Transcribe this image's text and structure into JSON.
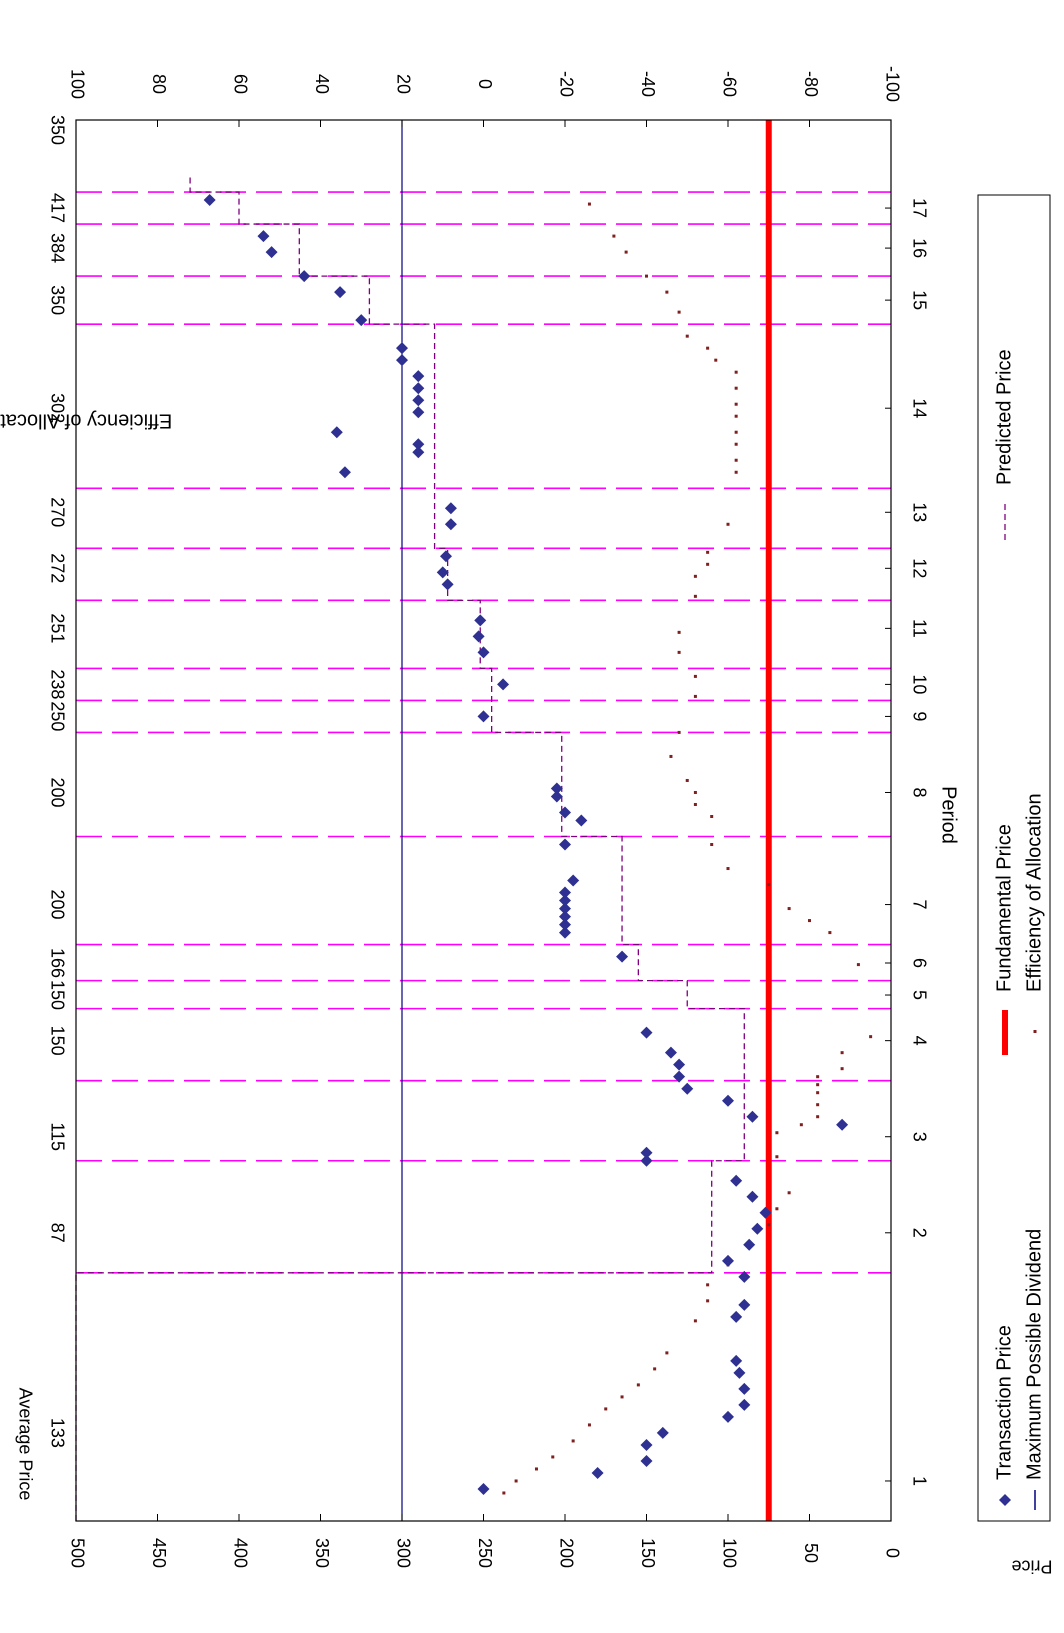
{
  "chart_data": {
    "type": "scatter",
    "title": "",
    "xlabel": "Period",
    "ylabel": "Price",
    "y2label": "Efficiency of Allocations (Percent)",
    "average_price_label": "Average Price",
    "ylim": [
      0,
      500
    ],
    "y2lim": [
      -100,
      100
    ],
    "yticks": [
      "0",
      "50",
      "100",
      "150",
      "200",
      "250",
      "300",
      "350",
      "400",
      "450",
      "500"
    ],
    "y2ticks": [
      "-100",
      "-80",
      "-60",
      "-40",
      "-20",
      "0",
      "20",
      "40",
      "60",
      "80",
      "100"
    ],
    "x_range": [
      0.5,
      18
    ],
    "rotation": "rotated 90 degrees clockwise",
    "legend_position": "bottom",
    "period_labels": [
      {
        "label": "1",
        "x": 1.0
      },
      {
        "label": "2",
        "x": 4.1
      },
      {
        "label": "3",
        "x": 5.3
      },
      {
        "label": "4",
        "x": 6.5
      },
      {
        "label": "5",
        "x": 7.07
      },
      {
        "label": "6",
        "x": 7.47
      },
      {
        "label": "7",
        "x": 8.2
      },
      {
        "label": "8",
        "x": 9.6
      },
      {
        "label": "9",
        "x": 10.55
      },
      {
        "label": "10",
        "x": 10.95
      },
      {
        "label": "11",
        "x": 11.65
      },
      {
        "label": "12",
        "x": 12.4
      },
      {
        "label": "13",
        "x": 13.1
      },
      {
        "label": "14",
        "x": 14.4
      },
      {
        "label": "15",
        "x": 15.75
      },
      {
        "label": "16",
        "x": 16.4
      },
      {
        "label": "17",
        "x": 16.9
      }
    ],
    "period_boundaries": [
      3.6,
      5.0,
      6.0,
      6.9,
      7.25,
      7.7,
      9.05,
      10.35,
      10.75,
      11.15,
      12.0,
      12.65,
      13.4,
      15.45,
      16.05,
      16.7,
      17.1
    ],
    "average_prices": [
      {
        "label": "133",
        "x": 1.6
      },
      {
        "label": "87",
        "x": 4.1
      },
      {
        "label": "115",
        "x": 5.3
      },
      {
        "label": "150",
        "x": 6.5
      },
      {
        "label": "150",
        "x": 7.07
      },
      {
        "label": "166",
        "x": 7.47
      },
      {
        "label": "200",
        "x": 8.2
      },
      {
        "label": "200",
        "x": 9.6
      },
      {
        "label": "250",
        "x": 10.55
      },
      {
        "label": "238",
        "x": 10.95
      },
      {
        "label": "251",
        "x": 11.65
      },
      {
        "label": "272",
        "x": 12.4
      },
      {
        "label": "270",
        "x": 13.1
      },
      {
        "label": "302",
        "x": 14.4
      },
      {
        "label": "350",
        "x": 15.75
      },
      {
        "label": "384",
        "x": 16.4
      },
      {
        "label": "417",
        "x": 16.9
      },
      {
        "label": "350",
        "x": 16.9
      }
    ],
    "series": [
      {
        "name": "Transaction Price",
        "color": "#2e3192",
        "marker": "diamond",
        "points": [
          [
            0.9,
            250
          ],
          [
            1.1,
            180
          ],
          [
            1.25,
            150
          ],
          [
            1.45,
            150
          ],
          [
            1.6,
            140
          ],
          [
            1.8,
            100
          ],
          [
            1.95,
            90
          ],
          [
            2.15,
            90
          ],
          [
            2.35,
            93
          ],
          [
            2.5,
            95
          ],
          [
            3.05,
            95
          ],
          [
            3.2,
            90
          ],
          [
            3.55,
            90
          ],
          [
            3.75,
            100
          ],
          [
            3.95,
            87
          ],
          [
            4.15,
            82
          ],
          [
            4.35,
            77
          ],
          [
            4.55,
            85
          ],
          [
            4.75,
            95
          ],
          [
            5.0,
            150
          ],
          [
            5.1,
            150
          ],
          [
            5.45,
            30
          ],
          [
            5.55,
            85
          ],
          [
            5.75,
            100
          ],
          [
            5.9,
            125
          ],
          [
            6.05,
            130
          ],
          [
            6.2,
            130
          ],
          [
            6.35,
            135
          ],
          [
            6.6,
            150
          ],
          [
            7.55,
            165
          ],
          [
            7.85,
            200
          ],
          [
            7.95,
            200
          ],
          [
            8.05,
            200
          ],
          [
            8.15,
            200
          ],
          [
            8.25,
            200
          ],
          [
            8.35,
            200
          ],
          [
            8.5,
            195
          ],
          [
            8.95,
            200
          ],
          [
            9.25,
            190
          ],
          [
            9.35,
            200
          ],
          [
            9.55,
            205
          ],
          [
            9.65,
            205
          ],
          [
            10.55,
            250
          ],
          [
            10.95,
            238
          ],
          [
            11.35,
            250
          ],
          [
            11.55,
            253
          ],
          [
            11.75,
            252
          ],
          [
            12.2,
            272
          ],
          [
            12.35,
            275
          ],
          [
            12.55,
            273
          ],
          [
            12.95,
            270
          ],
          [
            13.15,
            270
          ],
          [
            13.6,
            335
          ],
          [
            13.85,
            290
          ],
          [
            13.95,
            290
          ],
          [
            14.1,
            340
          ],
          [
            14.35,
            290
          ],
          [
            14.5,
            290
          ],
          [
            14.65,
            290
          ],
          [
            14.8,
            290
          ],
          [
            15.0,
            300
          ],
          [
            15.15,
            300
          ],
          [
            15.5,
            325
          ],
          [
            15.85,
            338
          ],
          [
            16.05,
            360
          ],
          [
            16.35,
            380
          ],
          [
            16.55,
            385
          ],
          [
            17.0,
            418
          ]
        ]
      },
      {
        "name": "Fundamental Price",
        "color": "#ff0000",
        "value": 75
      },
      {
        "name": "Maximum Possible Dividend",
        "color": "#00007f",
        "value": 300
      },
      {
        "name": "Efficiency of Allocation",
        "color": "#7f1f1f",
        "axis": "right",
        "points": [
          [
            0.85,
            -5
          ],
          [
            1.0,
            -8
          ],
          [
            1.15,
            -13
          ],
          [
            1.3,
            -17
          ],
          [
            1.5,
            -22
          ],
          [
            1.7,
            -26
          ],
          [
            1.9,
            -30
          ],
          [
            2.05,
            -34
          ],
          [
            2.2,
            -38
          ],
          [
            2.4,
            -42
          ],
          [
            2.6,
            -45
          ],
          [
            3.0,
            -52
          ],
          [
            3.25,
            -55
          ],
          [
            3.45,
            -55
          ],
          [
            3.7,
            -60
          ],
          [
            3.95,
            -65
          ],
          [
            4.2,
            -70
          ],
          [
            4.4,
            -72
          ],
          [
            4.6,
            -75
          ],
          [
            5.05,
            -72
          ],
          [
            5.35,
            -72
          ],
          [
            5.45,
            -78
          ],
          [
            5.55,
            -82
          ],
          [
            5.7,
            -82
          ],
          [
            5.85,
            -82
          ],
          [
            5.95,
            -82
          ],
          [
            6.05,
            -82
          ],
          [
            6.15,
            -88
          ],
          [
            6.35,
            -88
          ],
          [
            6.55,
            -95
          ],
          [
            7.45,
            -92
          ],
          [
            7.85,
            -85
          ],
          [
            8.0,
            -80
          ],
          [
            8.15,
            -75
          ],
          [
            8.45,
            -70
          ],
          [
            8.65,
            -60
          ],
          [
            8.95,
            -56
          ],
          [
            9.3,
            -56
          ],
          [
            9.45,
            -52
          ],
          [
            9.6,
            -52
          ],
          [
            9.75,
            -50
          ],
          [
            10.05,
            -46
          ],
          [
            10.35,
            -48
          ],
          [
            10.8,
            -52
          ],
          [
            11.05,
            -52
          ],
          [
            11.35,
            -48
          ],
          [
            11.6,
            -48
          ],
          [
            12.05,
            -52
          ],
          [
            12.3,
            -52
          ],
          [
            12.45,
            -55
          ],
          [
            12.6,
            -55
          ],
          [
            12.95,
            -60
          ],
          [
            13.6,
            -62
          ],
          [
            13.75,
            -62
          ],
          [
            13.95,
            -62
          ],
          [
            14.1,
            -62
          ],
          [
            14.3,
            -62
          ],
          [
            14.45,
            -62
          ],
          [
            14.65,
            -62
          ],
          [
            14.85,
            -62
          ],
          [
            15.0,
            -57
          ],
          [
            15.15,
            -55
          ],
          [
            15.3,
            -50
          ],
          [
            15.6,
            -48
          ],
          [
            15.85,
            -45
          ],
          [
            16.05,
            -40
          ],
          [
            16.35,
            -35
          ],
          [
            16.55,
            -32
          ],
          [
            16.95,
            -26
          ]
        ]
      },
      {
        "name": "Predicted Price",
        "color": "#800080",
        "style": "dashed-step",
        "steps": [
          [
            0.5,
            500
          ],
          [
            3.6,
            500
          ],
          [
            3.6,
            110
          ],
          [
            5.0,
            110
          ],
          [
            5.0,
            90
          ],
          [
            6.9,
            90
          ],
          [
            6.9,
            125
          ],
          [
            7.25,
            125
          ],
          [
            7.25,
            155
          ],
          [
            7.7,
            155
          ],
          [
            7.7,
            165
          ],
          [
            9.05,
            165
          ],
          [
            9.05,
            202
          ],
          [
            10.35,
            202
          ],
          [
            10.35,
            245
          ],
          [
            11.15,
            245
          ],
          [
            11.15,
            252
          ],
          [
            12.0,
            252
          ],
          [
            12.0,
            272
          ],
          [
            12.65,
            272
          ],
          [
            12.65,
            280
          ],
          [
            15.45,
            280
          ],
          [
            15.45,
            320
          ],
          [
            16.05,
            320
          ],
          [
            16.05,
            363
          ],
          [
            16.7,
            363
          ],
          [
            16.7,
            400
          ],
          [
            17.1,
            400
          ],
          [
            17.1,
            430
          ],
          [
            17.3,
            430
          ]
        ]
      }
    ]
  }
}
